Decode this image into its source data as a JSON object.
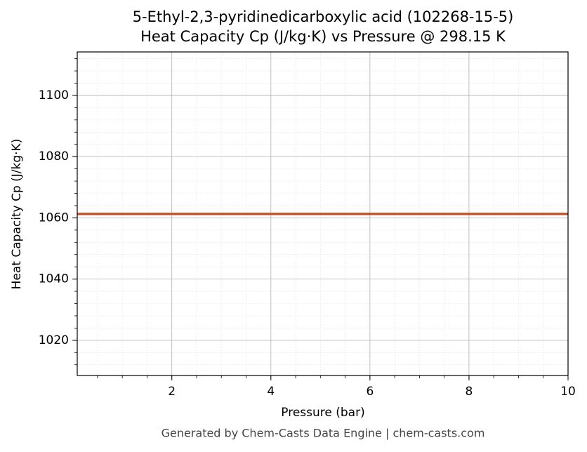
{
  "chart_data": {
    "type": "line",
    "title": "5-Ethyl-2,3-pyridinedicarboxylic acid (102268-15-5)",
    "subtitle": "Heat Capacity Cp (J/kg·K) vs Pressure @ 298.15 K",
    "x_label": "Pressure (bar)",
    "y_label": "Heat Capacity Cp (J/kg·K)",
    "footer": "Generated by Chem-Casts Data Engine | chem-casts.com",
    "x": [
      0.09,
      10
    ],
    "series": [
      {
        "name": "Cp",
        "color": "#c8562b",
        "values": [
          1061.3,
          1061.3
        ]
      }
    ],
    "xlim": [
      0.09,
      10
    ],
    "xticks": [
      2,
      4,
      6,
      8,
      10
    ],
    "ylim": [
      1008.5,
      1114.2
    ],
    "yticks": [
      1020,
      1040,
      1060,
      1080,
      1100
    ],
    "grid": true,
    "minor_grid": true
  }
}
